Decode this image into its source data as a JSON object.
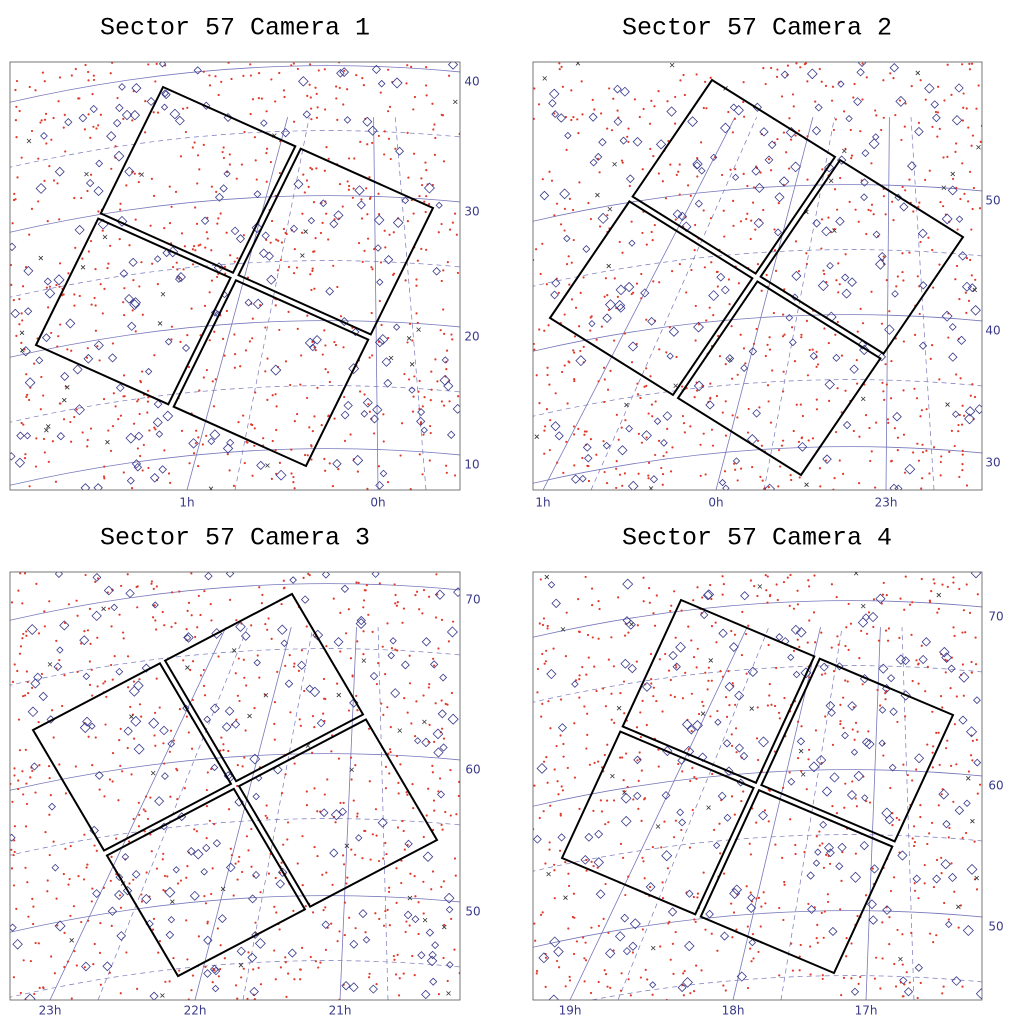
{
  "panels": [
    {
      "title": "Sector 57 Camera 1",
      "dec_labels": [
        "40",
        "30",
        "20",
        "10"
      ],
      "ra_labels": [
        "1h",
        "0h"
      ]
    },
    {
      "title": "Sector 57 Camera 2",
      "dec_labels": [
        "50",
        "40",
        "30"
      ],
      "ra_labels": [
        "1h",
        "0h",
        "23h"
      ]
    },
    {
      "title": "Sector 57 Camera 3",
      "dec_labels": [
        "70",
        "60",
        "50"
      ],
      "ra_labels": [
        "23h",
        "22h",
        "21h"
      ]
    },
    {
      "title": "Sector 57 Camera 4",
      "dec_labels": [
        "70",
        "60",
        "50"
      ],
      "ra_labels": [
        "19h",
        "18h",
        "17h"
      ]
    }
  ]
}
